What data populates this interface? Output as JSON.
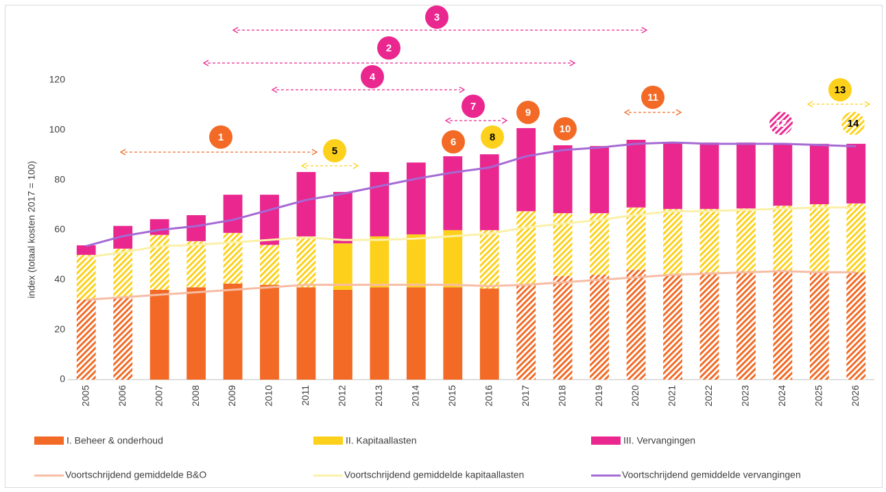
{
  "chart_data": {
    "type": "bar",
    "stacked": true,
    "y_label": "index (totaal kosten 2017 = 100)",
    "ylim": [
      0,
      120
    ],
    "yticks": [
      0,
      20,
      40,
      60,
      80,
      100,
      120
    ],
    "grid": false,
    "legend": "bottom",
    "categories": [
      "2005",
      "2006",
      "2007",
      "2008",
      "2009",
      "2010",
      "2011",
      "2012",
      "2013",
      "2014",
      "2015",
      "2016",
      "2017",
      "2018",
      "2019",
      "2020",
      "2021",
      "2022",
      "2023",
      "2024",
      "2025",
      "2026"
    ],
    "series": [
      {
        "name": "I. Beheer & onderhoud",
        "color": "#f26a25",
        "values": [
          32,
          33,
          36,
          37,
          38.5,
          38,
          37,
          36,
          37,
          37,
          37,
          36.5,
          38,
          41.5,
          42,
          44,
          42,
          43,
          43.5,
          43.5,
          43,
          43
        ],
        "hatched": [
          true,
          true,
          false,
          false,
          false,
          false,
          false,
          false,
          false,
          false,
          false,
          false,
          true,
          true,
          true,
          true,
          true,
          true,
          true,
          true,
          true,
          true
        ]
      },
      {
        "name": "II. Kapitaallasten",
        "color": "#fdd11b",
        "values": [
          18,
          19.5,
          22,
          18.5,
          20.3,
          16,
          20.4,
          18.6,
          20.4,
          21.2,
          22.9,
          23.4,
          29.5,
          25.2,
          24.7,
          25,
          26.4,
          25.4,
          25.1,
          26.2,
          27.3,
          27.6
        ],
        "hatched": [
          true,
          true,
          true,
          true,
          true,
          true,
          true,
          false,
          false,
          false,
          false,
          true,
          true,
          true,
          true,
          true,
          true,
          true,
          true,
          true,
          true,
          true
        ]
      },
      {
        "name": "III. Vervangingen",
        "color": "#ea268f",
        "values": [
          3.8,
          9.1,
          6.3,
          10.4,
          15.3,
          20.1,
          25.8,
          20.6,
          25.8,
          28.8,
          29.6,
          30.4,
          33.3,
          27.2,
          26.9,
          27.1,
          26.6,
          26.6,
          26.4,
          25,
          24.2,
          23.9
        ],
        "hatched": [
          false,
          false,
          false,
          false,
          false,
          false,
          false,
          false,
          false,
          false,
          false,
          false,
          false,
          false,
          false,
          false,
          false,
          false,
          false,
          false,
          false,
          false
        ]
      }
    ],
    "line_series": [
      {
        "name": "Voortschrijdend gemiddelde B&O",
        "color": "#f7bca3",
        "values": [
          32,
          33,
          34,
          35,
          36,
          37,
          38,
          38,
          38,
          38,
          38,
          37.5,
          38,
          39,
          40,
          41,
          42,
          42.5,
          43,
          43.5,
          43,
          43
        ]
      },
      {
        "name": "Voortschrijdend gemiddelde kapitaallasten",
        "color": "#fbf0a8",
        "values": [
          49,
          51,
          53.5,
          54,
          55,
          56,
          57,
          56,
          56,
          56.5,
          57.5,
          58.5,
          61,
          62.5,
          64,
          66,
          67.5,
          67.5,
          68,
          68.5,
          69,
          69
        ]
      },
      {
        "name": "Voortschrijdend gemiddelde vervangingen",
        "color": "#a569d4",
        "values": [
          53.5,
          57.5,
          60,
          61.5,
          64,
          68,
          72,
          74.5,
          77.5,
          80.5,
          83,
          85,
          89.5,
          92,
          93,
          94.5,
          95,
          94.5,
          94.5,
          94.5,
          94,
          93.5
        ]
      }
    ],
    "annotations": [
      {
        "label": "1",
        "color": "#f26a25",
        "text_color": "#ffffff",
        "hatched": false
      },
      {
        "label": "2",
        "color": "#ea268f",
        "text_color": "#ffffff",
        "hatched": false
      },
      {
        "label": "3",
        "color": "#ea268f",
        "text_color": "#ffffff",
        "hatched": false
      },
      {
        "label": "4",
        "color": "#ea268f",
        "text_color": "#ffffff",
        "hatched": false
      },
      {
        "label": "5",
        "color": "#fdd11b",
        "text_color": "#000000",
        "hatched": false
      },
      {
        "label": "6",
        "color": "#f26a25",
        "text_color": "#ffffff",
        "hatched": false
      },
      {
        "label": "7",
        "color": "#ea268f",
        "text_color": "#ffffff",
        "hatched": false
      },
      {
        "label": "8",
        "color": "#fdd11b",
        "text_color": "#000000",
        "hatched": false
      },
      {
        "label": "9",
        "color": "#f26a25",
        "text_color": "#ffffff",
        "hatched": false
      },
      {
        "label": "10",
        "color": "#f26a25",
        "text_color": "#ffffff",
        "hatched": false
      },
      {
        "label": "11",
        "color": "#f26a25",
        "text_color": "#ffffff",
        "hatched": false
      },
      {
        "label": "12",
        "color": "#ea268f",
        "text_color": "#ffffff",
        "hatched": true
      },
      {
        "label": "13",
        "color": "#fdd11b",
        "text_color": "#000000",
        "hatched": false
      },
      {
        "label": "14",
        "color": "#fdd11b",
        "text_color": "#000000",
        "hatched": true
      }
    ]
  }
}
